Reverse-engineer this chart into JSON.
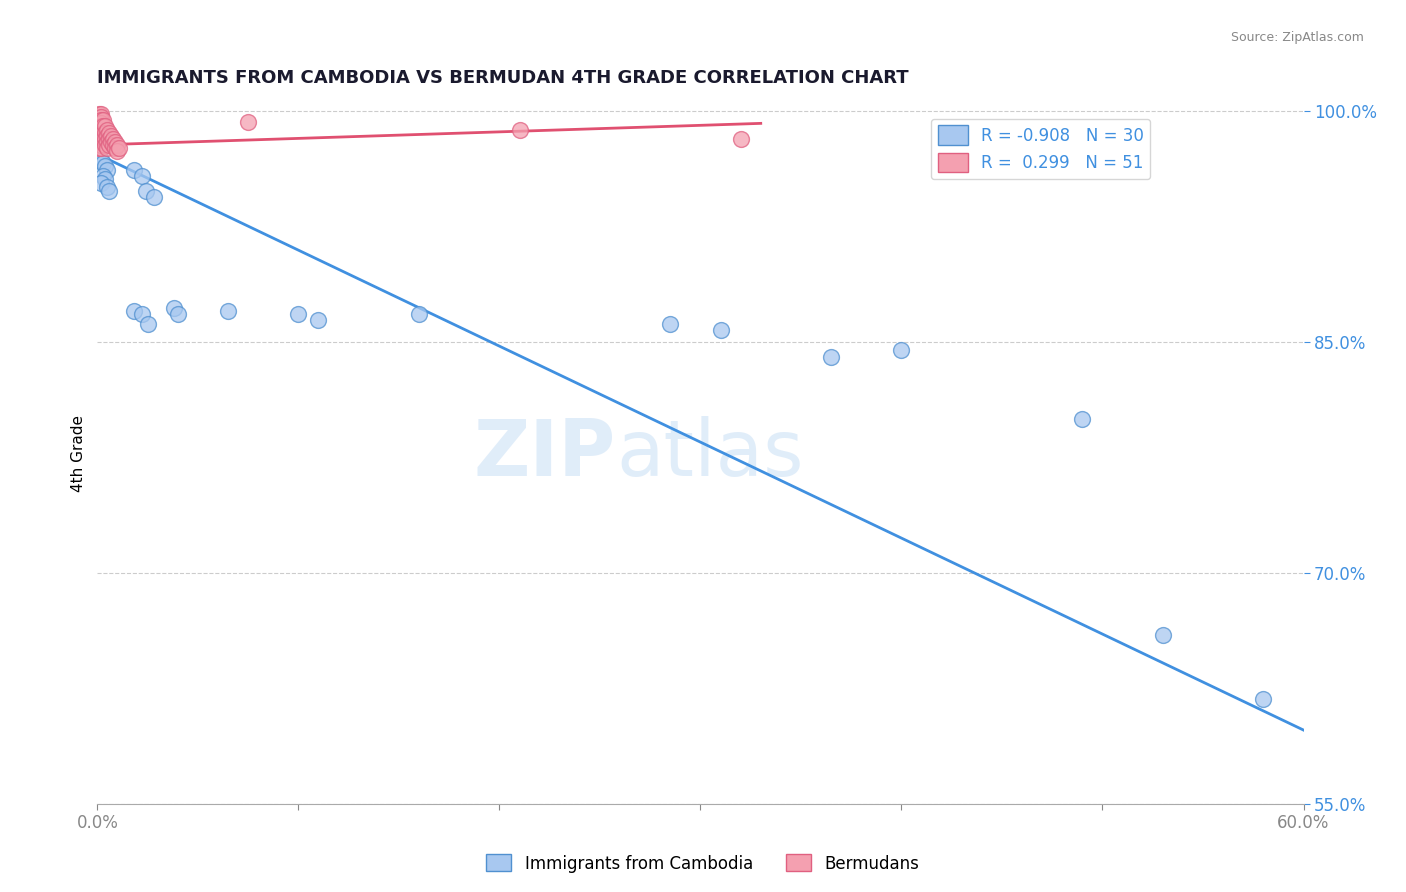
{
  "title": "IMMIGRANTS FROM CAMBODIA VS BERMUDAN 4TH GRADE CORRELATION CHART",
  "source": "Source: ZipAtlas.com",
  "ylabel": "4th Grade",
  "xlim": [
    0.0,
    0.6
  ],
  "ylim": [
    0.595,
    1.005
  ],
  "yticks": [
    1.0,
    0.85,
    0.7,
    0.55
  ],
  "ytick_labels": [
    "100.0%",
    "85.0%",
    "70.0%",
    "55.0%"
  ],
  "xticks": [
    0.0,
    0.1,
    0.2,
    0.3,
    0.4,
    0.5,
    0.6
  ],
  "xtick_labels": [
    "0.0%",
    "",
    "",
    "",
    "",
    "",
    "60.0%"
  ],
  "watermark_part1": "ZIP",
  "watermark_part2": "atlas",
  "blue_label": "Immigrants from Cambodia",
  "pink_label": "Bermudans",
  "blue_R": -0.908,
  "blue_N": 30,
  "pink_R": 0.299,
  "pink_N": 51,
  "blue_color": "#a8c8f0",
  "pink_color": "#f4a0b0",
  "blue_edge_color": "#5090d0",
  "pink_edge_color": "#e06080",
  "blue_line_color": "#4090e0",
  "pink_line_color": "#e05070",
  "blue_dots": [
    [
      0.001,
      0.97
    ],
    [
      0.002,
      0.968
    ],
    [
      0.003,
      0.966
    ],
    [
      0.004,
      0.964
    ],
    [
      0.005,
      0.962
    ],
    [
      0.003,
      0.958
    ],
    [
      0.004,
      0.956
    ],
    [
      0.002,
      0.953
    ],
    [
      0.005,
      0.951
    ],
    [
      0.006,
      0.948
    ],
    [
      0.018,
      0.962
    ],
    [
      0.022,
      0.958
    ],
    [
      0.024,
      0.948
    ],
    [
      0.028,
      0.944
    ],
    [
      0.018,
      0.87
    ],
    [
      0.022,
      0.868
    ],
    [
      0.025,
      0.862
    ],
    [
      0.038,
      0.872
    ],
    [
      0.04,
      0.868
    ],
    [
      0.065,
      0.87
    ],
    [
      0.1,
      0.868
    ],
    [
      0.11,
      0.864
    ],
    [
      0.16,
      0.868
    ],
    [
      0.285,
      0.862
    ],
    [
      0.31,
      0.858
    ],
    [
      0.365,
      0.84
    ],
    [
      0.4,
      0.845
    ],
    [
      0.49,
      0.8
    ],
    [
      0.53,
      0.66
    ],
    [
      0.58,
      0.618
    ]
  ],
  "pink_dots": [
    [
      0.001,
      0.998
    ],
    [
      0.001,
      0.996
    ],
    [
      0.001,
      0.994
    ],
    [
      0.001,
      0.992
    ],
    [
      0.001,
      0.99
    ],
    [
      0.001,
      0.988
    ],
    [
      0.001,
      0.986
    ],
    [
      0.001,
      0.984
    ],
    [
      0.001,
      0.982
    ],
    [
      0.001,
      0.98
    ],
    [
      0.001,
      0.978
    ],
    [
      0.001,
      0.976
    ],
    [
      0.002,
      0.998
    ],
    [
      0.002,
      0.996
    ],
    [
      0.002,
      0.994
    ],
    [
      0.002,
      0.992
    ],
    [
      0.002,
      0.99
    ],
    [
      0.002,
      0.988
    ],
    [
      0.002,
      0.986
    ],
    [
      0.002,
      0.984
    ],
    [
      0.002,
      0.982
    ],
    [
      0.002,
      0.98
    ],
    [
      0.002,
      0.978
    ],
    [
      0.002,
      0.976
    ],
    [
      0.003,
      0.994
    ],
    [
      0.003,
      0.99
    ],
    [
      0.003,
      0.986
    ],
    [
      0.003,
      0.982
    ],
    [
      0.004,
      0.99
    ],
    [
      0.004,
      0.986
    ],
    [
      0.004,
      0.982
    ],
    [
      0.004,
      0.978
    ],
    [
      0.005,
      0.988
    ],
    [
      0.005,
      0.984
    ],
    [
      0.005,
      0.98
    ],
    [
      0.005,
      0.976
    ],
    [
      0.006,
      0.986
    ],
    [
      0.006,
      0.982
    ],
    [
      0.006,
      0.978
    ],
    [
      0.007,
      0.984
    ],
    [
      0.007,
      0.98
    ],
    [
      0.008,
      0.982
    ],
    [
      0.008,
      0.978
    ],
    [
      0.009,
      0.98
    ],
    [
      0.009,
      0.976
    ],
    [
      0.01,
      0.978
    ],
    [
      0.01,
      0.974
    ],
    [
      0.011,
      0.976
    ],
    [
      0.075,
      0.993
    ],
    [
      0.21,
      0.988
    ],
    [
      0.32,
      0.982
    ]
  ],
  "blue_trendline_x": [
    0.0,
    0.6
  ],
  "blue_trendline_y": [
    0.972,
    0.598
  ],
  "pink_trendline_x": [
    0.0,
    0.33
  ],
  "pink_trendline_y": [
    0.978,
    0.992
  ]
}
